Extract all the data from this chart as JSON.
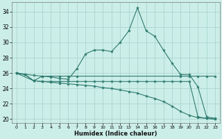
{
  "xlabel": "Humidex (Indice chaleur)",
  "background_color": "#cceee8",
  "grid_color": "#aad4ce",
  "line_color": "#2d7a6e",
  "xlim": [
    -0.5,
    23.5
  ],
  "ylim": [
    19.5,
    35.2
  ],
  "yticks": [
    20,
    22,
    24,
    26,
    28,
    30,
    32,
    34
  ],
  "xticks": [
    0,
    1,
    2,
    3,
    4,
    5,
    6,
    7,
    8,
    9,
    10,
    11,
    12,
    13,
    14,
    15,
    16,
    17,
    18,
    19,
    20,
    21,
    22,
    23
  ],
  "lines": [
    {
      "x": [
        0,
        1,
        2,
        3,
        4,
        5,
        6,
        7,
        8,
        9,
        10,
        11,
        12,
        13,
        14,
        15,
        16,
        17,
        18,
        19,
        20,
        21,
        22,
        23
      ],
      "y": [
        26.0,
        25.8,
        25.0,
        25.6,
        25.5,
        25.3,
        25.2,
        26.6,
        28.5,
        29.0,
        29.0,
        28.8,
        30.0,
        31.5,
        34.5,
        31.5,
        30.8,
        29.0,
        27.3,
        25.8,
        25.8,
        24.2,
        20.3,
        20.1
      ]
    },
    {
      "x": [
        0,
        2,
        3,
        4,
        5,
        6,
        7,
        19,
        20,
        21,
        22,
        23
      ],
      "y": [
        26.0,
        25.7,
        25.6,
        25.6,
        25.6,
        25.6,
        25.6,
        25.6,
        25.6,
        25.6,
        25.6,
        25.6
      ]
    },
    {
      "x": [
        0,
        2,
        3,
        4,
        5,
        6,
        7,
        8,
        9,
        10,
        11,
        12,
        13,
        14,
        15,
        16,
        17,
        18,
        19,
        20,
        21,
        22,
        23
      ],
      "y": [
        26.0,
        25.0,
        24.9,
        24.9,
        24.9,
        24.9,
        24.9,
        24.9,
        24.9,
        24.9,
        24.9,
        24.9,
        24.9,
        24.9,
        24.9,
        24.9,
        24.9,
        24.9,
        24.9,
        24.9,
        20.3,
        20.1,
        20.0
      ]
    },
    {
      "x": [
        0,
        1,
        2,
        3,
        4,
        5,
        6,
        7,
        8,
        9,
        10,
        11,
        12,
        13,
        14,
        15,
        16,
        17,
        18,
        19,
        20,
        21,
        22,
        23
      ],
      "y": [
        26.0,
        25.8,
        25.0,
        24.9,
        24.8,
        24.7,
        24.6,
        24.5,
        24.4,
        24.3,
        24.1,
        24.0,
        23.8,
        23.6,
        23.4,
        23.0,
        22.7,
        22.3,
        21.7,
        21.0,
        20.5,
        20.2,
        20.1,
        20.0
      ]
    }
  ]
}
